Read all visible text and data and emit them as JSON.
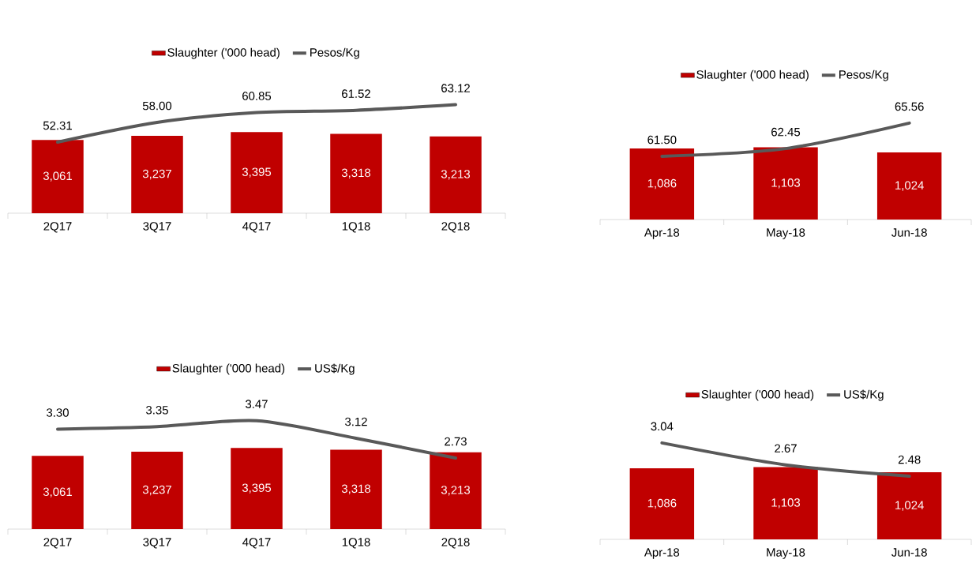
{
  "chart_data": [
    {
      "type": "bar",
      "categories": [
        "2Q17",
        "3Q17",
        "4Q17",
        "1Q18",
        "2Q18"
      ],
      "legend": "top",
      "tick_labels": "x",
      "series": [
        {
          "name": "Slaughter ('000 head)",
          "color": "#c00000",
          "values": [
            3061,
            3237,
            3395,
            3318,
            3213
          ],
          "value_labels": [
            "3,061",
            "3,237",
            "3,395",
            "3,318",
            "3,213"
          ]
        },
        {
          "name": "Pesos/Kg",
          "type": "line",
          "axis": "y2",
          "color": "#595959",
          "values": [
            52.31,
            58.0,
            60.85,
            61.52,
            63.12
          ],
          "value_labels": [
            "52.31",
            "58.00",
            "60.85",
            "61.52",
            "63.12"
          ]
        }
      ]
    },
    {
      "type": "bar",
      "categories": [
        "Apr-18",
        "May-18",
        "Jun-18"
      ],
      "legend": "top",
      "tick_labels": "x",
      "series": [
        {
          "name": "Slaughter ('000 head)",
          "color": "#c00000",
          "values": [
            1086,
            1103,
            1024
          ],
          "value_labels": [
            "1,086",
            "1,103",
            "1,024"
          ]
        },
        {
          "name": "Pesos/Kg",
          "type": "line",
          "axis": "y2",
          "color": "#595959",
          "values": [
            61.5,
            62.45,
            65.56
          ],
          "value_labels": [
            "61.50",
            "62.45",
            "65.56"
          ]
        }
      ]
    },
    {
      "type": "bar",
      "categories": [
        "2Q17",
        "3Q17",
        "4Q17",
        "1Q18",
        "2Q18"
      ],
      "legend": "top",
      "tick_labels": "x",
      "series": [
        {
          "name": "Slaughter ('000 head)",
          "color": "#c00000",
          "values": [
            3061,
            3237,
            3395,
            3318,
            3213
          ],
          "value_labels": [
            "3,061",
            "3,237",
            "3,395",
            "3,318",
            "3,213"
          ]
        },
        {
          "name": "US$/Kg",
          "type": "line",
          "axis": "y2",
          "color": "#595959",
          "values": [
            3.3,
            3.35,
            3.47,
            3.12,
            2.73
          ],
          "value_labels": [
            "3.30",
            "3.35",
            "3.47",
            "3.12",
            "2.73"
          ]
        }
      ]
    },
    {
      "type": "bar",
      "categories": [
        "Apr-18",
        "May-18",
        "Jun-18"
      ],
      "legend": "top",
      "tick_labels": "x",
      "series": [
        {
          "name": "Slaughter ('000 head)",
          "color": "#c00000",
          "values": [
            1086,
            1103,
            1024
          ],
          "value_labels": [
            "1,086",
            "1,103",
            "1,024"
          ]
        },
        {
          "name": "US$/Kg",
          "type": "line",
          "axis": "y2",
          "color": "#595959",
          "values": [
            3.04,
            2.67,
            2.48
          ],
          "value_labels": [
            "3.04",
            "2.67",
            "2.48"
          ]
        }
      ]
    }
  ]
}
